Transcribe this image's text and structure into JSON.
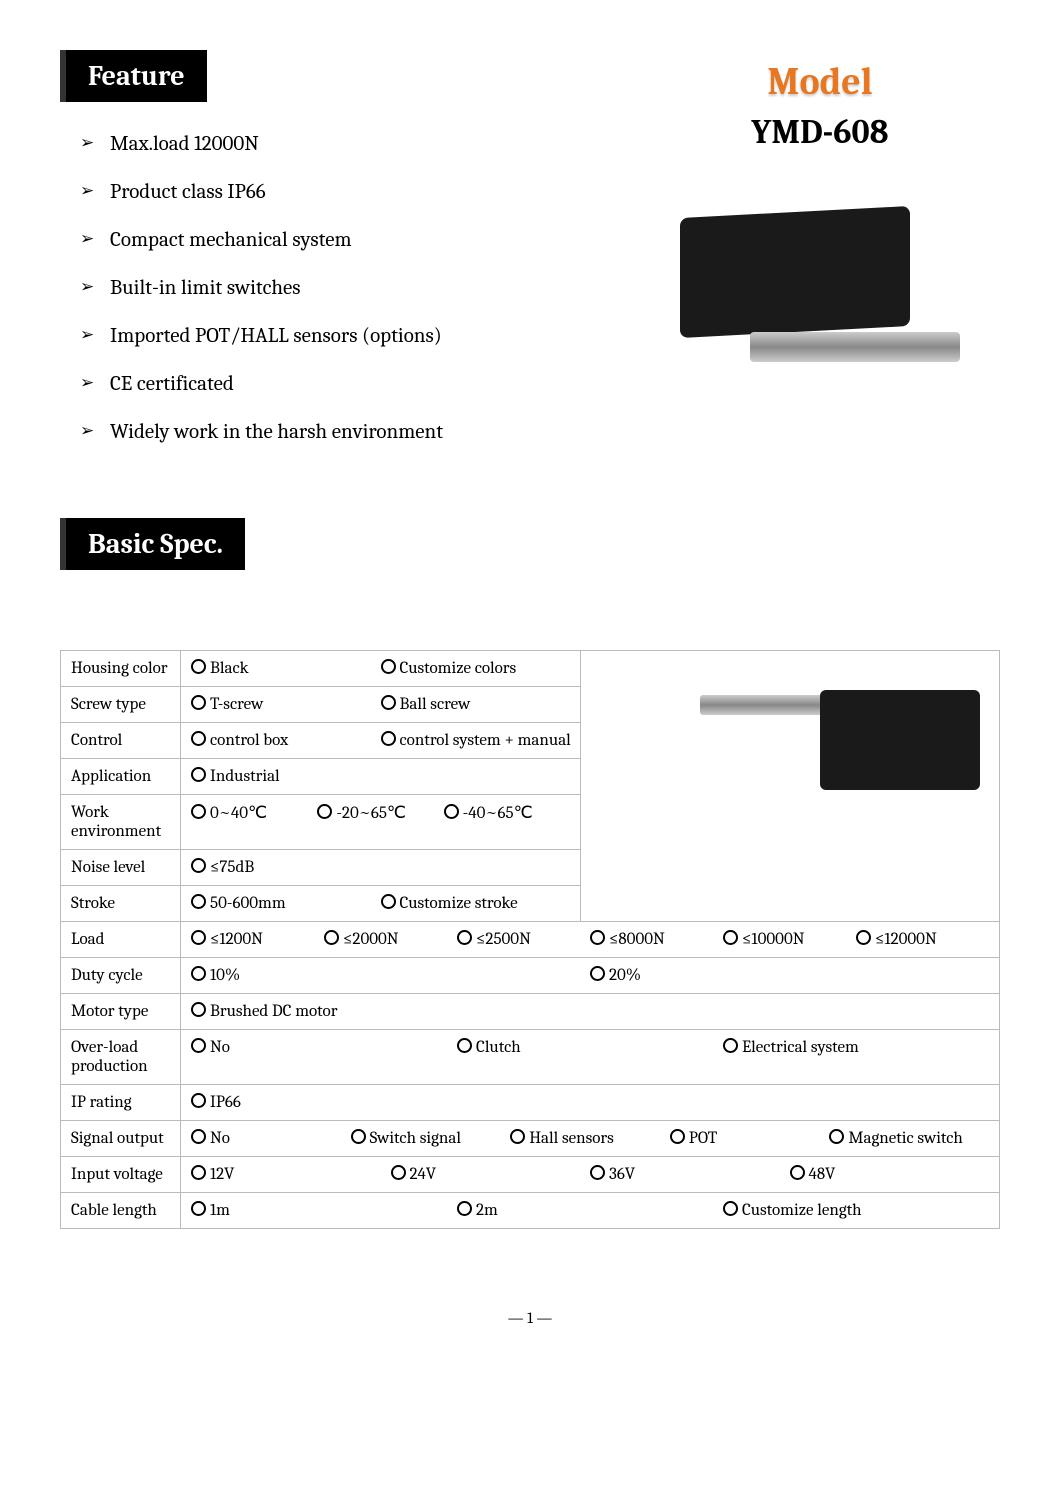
{
  "sections": {
    "feature": "Feature",
    "basic_spec": "Basic Spec."
  },
  "model": {
    "label": "Model",
    "number": "YMD-608"
  },
  "features": [
    "Max.load 12000N",
    "Product class IP66",
    "Compact mechanical system",
    "Built-in limit switches",
    "Imported POT/HALL sensors (options)",
    "CE certificated",
    "Widely work in the harsh environment"
  ],
  "spec_rows": [
    {
      "label": "Housing color",
      "options": [
        "Black",
        "Customize colors"
      ],
      "img_overlay": true
    },
    {
      "label": "Screw type",
      "options": [
        "T-screw",
        "Ball screw"
      ],
      "img_overlay": true
    },
    {
      "label": "Control",
      "options": [
        "control box",
        "control system + manual"
      ],
      "img_overlay": true
    },
    {
      "label": "Application",
      "options": [
        "Industrial"
      ],
      "img_overlay": true
    },
    {
      "label": "Work environment",
      "options": [
        "0~40℃",
        "-20~65℃",
        "-40~65℃"
      ],
      "img_overlay": true
    },
    {
      "label": "Noise level",
      "options": [
        "≤75dB"
      ],
      "img_overlay": true
    },
    {
      "label": "Stroke",
      "options": [
        "50-600mm",
        "Customize stroke"
      ],
      "img_overlay": true
    },
    {
      "label": "Load",
      "options": [
        "≤1200N",
        "≤2000N",
        "≤2500N",
        "≤8000N",
        "≤10000N",
        "≤12000N"
      ],
      "full": true
    },
    {
      "label": "Duty cycle",
      "options": [
        "10%",
        "20%"
      ],
      "full": true
    },
    {
      "label": "Motor type",
      "options": [
        "Brushed DC motor"
      ],
      "full": true
    },
    {
      "label": "Over-load production",
      "options": [
        "No",
        "Clutch",
        "Electrical system"
      ],
      "full": true
    },
    {
      "label": "IP rating",
      "options": [
        "IP66"
      ],
      "full": true
    },
    {
      "label": "Signal output",
      "options": [
        "No",
        "Switch signal",
        "Hall sensors",
        "POT",
        "Magnetic switch"
      ],
      "full": true
    },
    {
      "label": "Input voltage",
      "options": [
        "12V",
        "24V",
        "36V",
        "48V"
      ],
      "full": true
    },
    {
      "label": "Cable length",
      "options": [
        "1m",
        "2m",
        "Customize length"
      ],
      "full": true
    }
  ],
  "page_number": "— 1 —",
  "colors": {
    "accent_orange": "#e87722",
    "header_bg": "#000000",
    "header_fg": "#ffffff",
    "border": "#bbbbbb"
  }
}
